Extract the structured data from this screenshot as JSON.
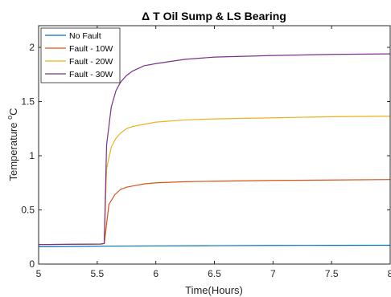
{
  "chart_data": {
    "type": "line",
    "title": "Δ T Oil Sump & LS Bearing",
    "xlabel": "Time(Hours)",
    "ylabel_main": "Temperature ",
    "ylabel_sup": "o",
    "ylabel_unit": "C",
    "xlim": [
      5,
      8
    ],
    "ylim": [
      0,
      2.2
    ],
    "x_ticks": [
      5,
      5.5,
      6,
      6.5,
      7,
      7.5,
      8
    ],
    "x_tick_labels": [
      "5",
      "5.5",
      "6",
      "6.5",
      "7",
      "7.5",
      "8"
    ],
    "y_ticks": [
      0,
      0.5,
      1,
      1.5,
      2
    ],
    "y_tick_labels": [
      "0",
      "0.5",
      "1",
      "1.5",
      "2"
    ],
    "grid": false,
    "legend_position": "top-left",
    "series": [
      {
        "name": "No Fault",
        "color": "#0072BD",
        "x": [
          5,
          5.5,
          6,
          6.5,
          7,
          7.5,
          8
        ],
        "y": [
          0.16,
          0.165,
          0.168,
          0.17,
          0.172,
          0.173,
          0.174
        ]
      },
      {
        "name": "Fault - 10W",
        "color": "#D95319",
        "x": [
          5,
          5.53,
          5.56,
          5.6,
          5.65,
          5.7,
          5.75,
          5.8,
          5.9,
          6.0,
          6.25,
          6.5,
          7,
          7.5,
          8
        ],
        "y": [
          0.18,
          0.185,
          0.19,
          0.55,
          0.64,
          0.69,
          0.71,
          0.72,
          0.74,
          0.75,
          0.76,
          0.765,
          0.772,
          0.776,
          0.78
        ]
      },
      {
        "name": "Fault - 20W",
        "color": "#EDB120",
        "x": [
          5,
          5.53,
          5.56,
          5.58,
          5.62,
          5.66,
          5.7,
          5.75,
          5.8,
          5.9,
          6.0,
          6.25,
          6.5,
          7,
          7.5,
          8
        ],
        "y": [
          0.18,
          0.185,
          0.19,
          0.88,
          1.08,
          1.16,
          1.21,
          1.25,
          1.27,
          1.29,
          1.31,
          1.33,
          1.34,
          1.35,
          1.36,
          1.365
        ]
      },
      {
        "name": "Fault - 30W",
        "color": "#7E2F8E",
        "x": [
          5,
          5.53,
          5.56,
          5.58,
          5.62,
          5.66,
          5.7,
          5.75,
          5.8,
          5.9,
          6.0,
          6.25,
          6.5,
          7,
          7.5,
          8
        ],
        "y": [
          0.18,
          0.185,
          0.19,
          1.1,
          1.45,
          1.6,
          1.68,
          1.74,
          1.78,
          1.83,
          1.85,
          1.89,
          1.91,
          1.925,
          1.935,
          1.94
        ]
      }
    ]
  }
}
